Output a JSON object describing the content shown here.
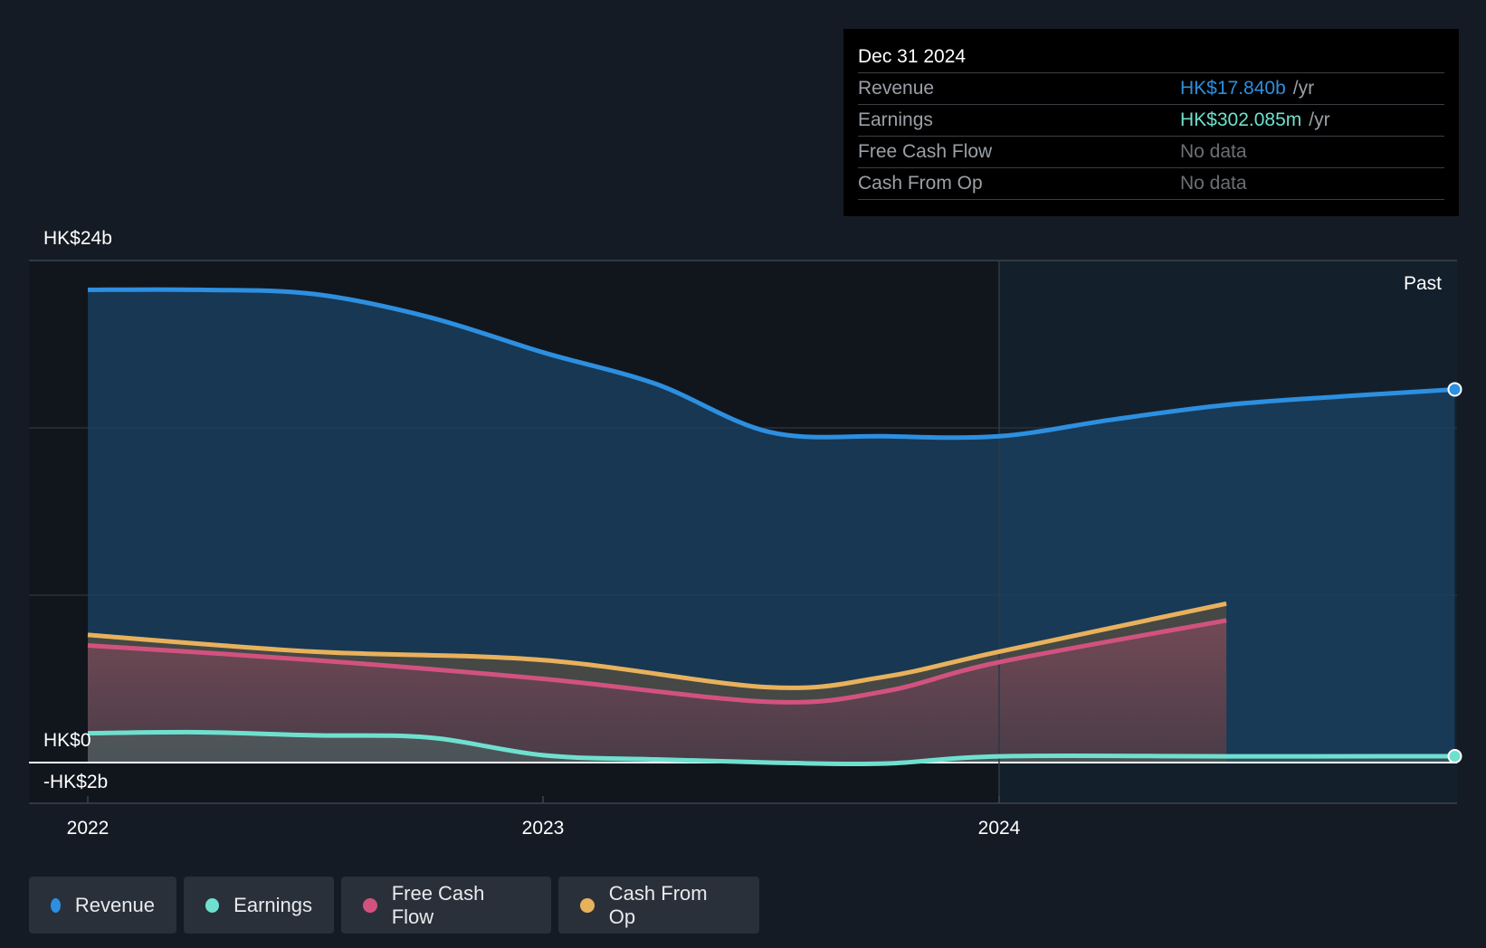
{
  "colors": {
    "background": "#151b24",
    "revenue": "#2d8fe0",
    "earnings": "#6fe0cf",
    "free_cash_flow": "#d2527f",
    "cash_from_op": "#e8b15c"
  },
  "tooltip": {
    "date": "Dec 31 2024",
    "rows": [
      {
        "name": "Revenue",
        "value": "HK$17.840b",
        "unit": "/yr",
        "color": "#2d8fe0"
      },
      {
        "name": "Earnings",
        "value": "HK$302.085m",
        "unit": "/yr",
        "color": "#6fe0cf"
      },
      {
        "name": "Free Cash Flow",
        "value": "No data",
        "unit": "",
        "color": ""
      },
      {
        "name": "Cash From Op",
        "value": "No data",
        "unit": "",
        "color": ""
      }
    ]
  },
  "axis": {
    "y_top_label": "HK$24b",
    "y_zero_label": "HK$0",
    "y_bottom_label": "-HK$2b",
    "past_label": "Past"
  },
  "legend": [
    {
      "label": "Revenue",
      "color": "#2d8fe0"
    },
    {
      "label": "Earnings",
      "color": "#6fe0cf"
    },
    {
      "label": "Free Cash Flow",
      "color": "#d2527f"
    },
    {
      "label": "Cash From Op",
      "color": "#e8b15c"
    }
  ],
  "chart_data": {
    "type": "area",
    "x_ticks": [
      "2022",
      "2023",
      "2024"
    ],
    "ylim": [
      -2,
      24
    ],
    "y_unit": "HK$ billions",
    "series": [
      {
        "name": "Revenue",
        "points": [
          [
            "2022-01-01",
            22.6
          ],
          [
            "2022-04-01",
            22.6
          ],
          [
            "2022-07-01",
            22.4
          ],
          [
            "2022-10-01",
            21.3
          ],
          [
            "2023-01-01",
            19.6
          ],
          [
            "2023-04-01",
            18.1
          ],
          [
            "2023-07-01",
            15.8
          ],
          [
            "2023-10-01",
            15.6
          ],
          [
            "2024-01-01",
            15.6
          ],
          [
            "2024-04-01",
            16.4
          ],
          [
            "2024-07-01",
            17.1
          ],
          [
            "2024-10-01",
            17.5
          ],
          [
            "2024-12-31",
            17.84
          ]
        ]
      },
      {
        "name": "Earnings",
        "points": [
          [
            "2022-01-01",
            1.4
          ],
          [
            "2022-04-01",
            1.45
          ],
          [
            "2022-07-01",
            1.3
          ],
          [
            "2022-10-01",
            1.2
          ],
          [
            "2023-01-01",
            0.35
          ],
          [
            "2023-04-01",
            0.15
          ],
          [
            "2023-07-01",
            0.0
          ],
          [
            "2023-10-01",
            -0.05
          ],
          [
            "2024-01-01",
            0.3
          ],
          [
            "2024-07-01",
            0.3
          ],
          [
            "2024-12-31",
            0.302
          ]
        ]
      },
      {
        "name": "Free Cash Flow",
        "points": [
          [
            "2022-01-01",
            5.6
          ],
          [
            "2022-07-01",
            4.9
          ],
          [
            "2023-01-01",
            4.0
          ],
          [
            "2023-07-01",
            2.9
          ],
          [
            "2023-10-01",
            3.4
          ],
          [
            "2024-01-01",
            4.8
          ],
          [
            "2024-07-01",
            6.8
          ]
        ]
      },
      {
        "name": "Cash From Op",
        "points": [
          [
            "2022-01-01",
            6.1
          ],
          [
            "2022-07-01",
            5.3
          ],
          [
            "2023-01-01",
            4.9
          ],
          [
            "2023-07-01",
            3.6
          ],
          [
            "2023-10-01",
            4.1
          ],
          [
            "2024-01-01",
            5.3
          ],
          [
            "2024-07-01",
            7.6
          ]
        ]
      }
    ]
  }
}
